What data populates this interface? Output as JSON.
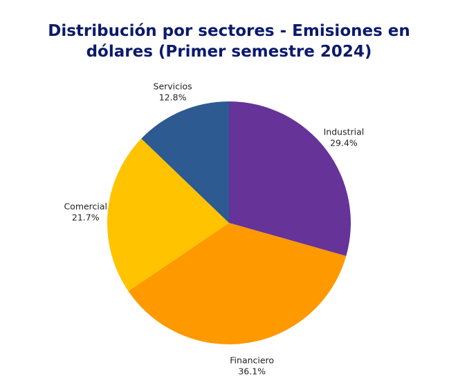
{
  "chart_data": {
    "type": "pie",
    "title_lines": [
      "Distribución por sectores - Emisiones en",
      "dólares (Primer semestre 2024)"
    ],
    "slices": [
      {
        "label": "Industrial",
        "value": 29.4,
        "value_label": "29.4%",
        "color": "#663399"
      },
      {
        "label": "Financiero",
        "value": 36.1,
        "value_label": "36.1%",
        "color": "#ff9900"
      },
      {
        "label": "Comercial",
        "value": 21.7,
        "value_label": "21.7%",
        "color": "#ffc300"
      },
      {
        "label": "Servicios",
        "value": 12.8,
        "value_label": "12.8%",
        "color": "#2c5a91"
      }
    ],
    "start_angle": "12 o'clock",
    "direction": "clockwise",
    "legend": "none"
  }
}
